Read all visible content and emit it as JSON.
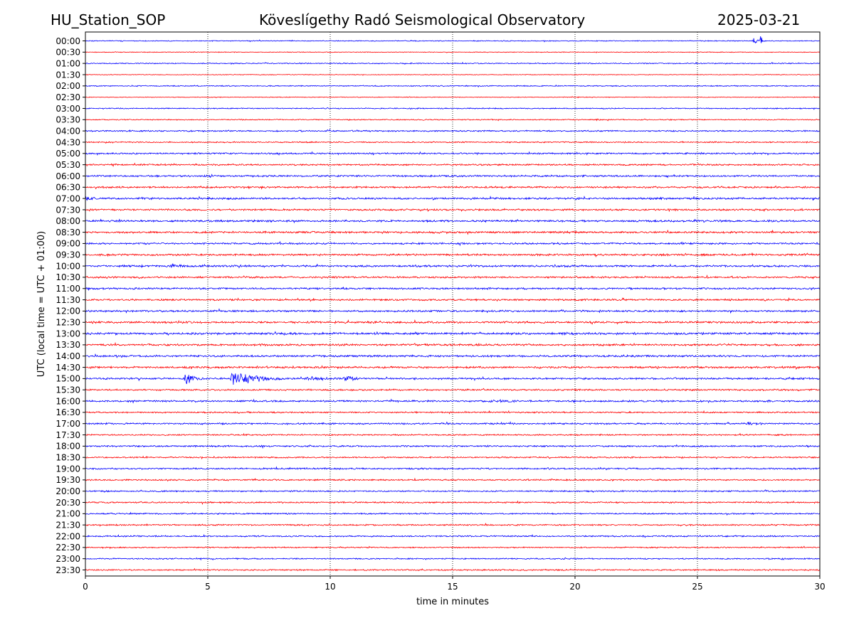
{
  "header": {
    "station": "HU_Station_SOP",
    "observatory": "Köveslígethy Radó Seismological Observatory",
    "date": "2025-03-21"
  },
  "chart_data": {
    "type": "line",
    "title": "Köveslígethy Radó Seismological Observatory",
    "xlabel": "time in minutes",
    "ylabel": "UTC (local time = UTC + 01:00)",
    "xlim": [
      0,
      30
    ],
    "xticks": [
      0,
      5,
      10,
      15,
      20,
      25,
      30
    ],
    "xtick_labels": [
      "0",
      "5",
      "10",
      "15",
      "20",
      "25",
      "30"
    ],
    "grid_x": true,
    "rows": [
      "00:00",
      "00:30",
      "01:00",
      "01:30",
      "02:00",
      "02:30",
      "03:00",
      "03:30",
      "04:00",
      "04:30",
      "05:00",
      "05:30",
      "06:00",
      "06:30",
      "07:00",
      "07:30",
      "08:00",
      "08:30",
      "09:00",
      "09:30",
      "10:00",
      "10:30",
      "11:00",
      "11:30",
      "12:00",
      "12:30",
      "13:00",
      "13:30",
      "14:00",
      "14:30",
      "15:00",
      "15:30",
      "16:00",
      "16:30",
      "17:00",
      "17:30",
      "18:00",
      "18:30",
      "19:00",
      "19:30",
      "20:00",
      "20:30",
      "21:00",
      "21:30",
      "22:00",
      "22:30",
      "23:00",
      "23:30"
    ],
    "trace_colors": [
      "#0000ff",
      "#ff0000"
    ],
    "noise_levels": [
      0.5,
      0.4,
      0.6,
      0.4,
      0.6,
      0.4,
      0.6,
      0.6,
      0.8,
      0.7,
      0.9,
      0.9,
      1.0,
      1.0,
      1.1,
      1.0,
      1.1,
      1.1,
      1.0,
      1.1,
      1.1,
      1.0,
      1.0,
      1.0,
      1.0,
      1.1,
      1.2,
      1.1,
      1.1,
      1.1,
      1.0,
      0.9,
      1.0,
      0.8,
      0.9,
      0.8,
      0.9,
      0.8,
      0.9,
      0.8,
      0.8,
      0.8,
      0.8,
      0.8,
      0.8,
      0.7,
      0.7,
      0.8
    ],
    "events": [
      {
        "row": "00:00",
        "minute": 27.3,
        "amplitude": 6,
        "duration_min": 0.4
      },
      {
        "row": "00:00",
        "minute": 27.6,
        "amplitude": 9,
        "duration_min": 0.2
      },
      {
        "row": "03:30",
        "minute": 20.9,
        "amplitude": 3,
        "duration_min": 0.3
      },
      {
        "row": "07:00",
        "minute": 0.0,
        "amplitude": 4,
        "duration_min": 1.5
      },
      {
        "row": "07:30",
        "minute": 10.0,
        "amplitude": 3,
        "duration_min": 0.4
      },
      {
        "row": "10:00",
        "minute": 3.5,
        "amplitude": 3,
        "duration_min": 4.0
      },
      {
        "row": "13:00",
        "minute": 19.5,
        "amplitude": 3,
        "duration_min": 2.5
      },
      {
        "row": "15:00",
        "minute": 4.1,
        "amplitude": 10,
        "duration_min": 1.2
      },
      {
        "row": "15:00",
        "minute": 6.0,
        "amplitude": 13,
        "duration_min": 3.0
      },
      {
        "row": "15:00",
        "minute": 9.0,
        "amplitude": 5,
        "duration_min": 3.0
      },
      {
        "row": "15:00",
        "minute": 10.6,
        "amplitude": 6,
        "duration_min": 1.4
      },
      {
        "row": "16:00",
        "minute": 16.5,
        "amplitude": 3,
        "duration_min": 5.0
      },
      {
        "row": "17:00",
        "minute": 27.0,
        "amplitude": 3,
        "duration_min": 3.0
      }
    ]
  }
}
